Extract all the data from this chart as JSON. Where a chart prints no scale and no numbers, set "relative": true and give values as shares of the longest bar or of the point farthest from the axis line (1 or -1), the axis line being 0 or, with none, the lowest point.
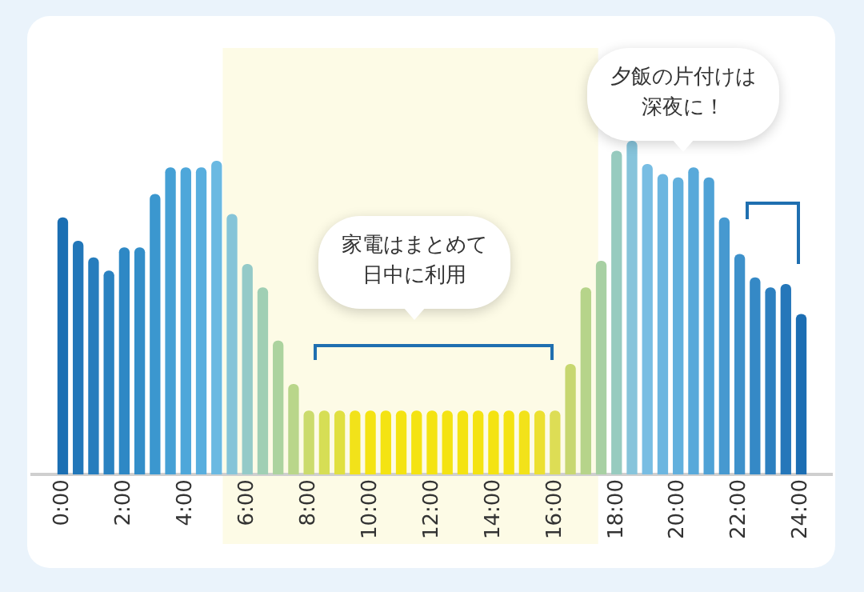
{
  "chart_data": {
    "type": "bar",
    "relative": true,
    "x": [
      0,
      0.5,
      1,
      1.5,
      2,
      2.5,
      3,
      3.5,
      4,
      4.5,
      5,
      5.5,
      6,
      6.5,
      7,
      7.5,
      8,
      8.5,
      9,
      9.5,
      10,
      10.5,
      11,
      11.5,
      12,
      12.5,
      13,
      13.5,
      14,
      14.5,
      15,
      15.5,
      16,
      16.5,
      17,
      17.5,
      18,
      18.5,
      19,
      19.5,
      20,
      20.5,
      21,
      21.5,
      22,
      22.5,
      23,
      23.5,
      24
    ],
    "values": [
      0.77,
      0.7,
      0.65,
      0.61,
      0.68,
      0.68,
      0.84,
      0.92,
      0.92,
      0.92,
      0.94,
      0.78,
      0.63,
      0.56,
      0.4,
      0.27,
      0.19,
      0.19,
      0.19,
      0.19,
      0.19,
      0.19,
      0.19,
      0.19,
      0.19,
      0.19,
      0.19,
      0.19,
      0.19,
      0.19,
      0.19,
      0.19,
      0.19,
      0.33,
      0.56,
      0.64,
      0.97,
      1,
      0.93,
      0.9,
      0.89,
      0.92,
      0.89,
      0.77,
      0.66,
      0.59,
      0.56,
      0.57,
      0.48
    ],
    "colors": [
      "#1b6fb3",
      "#2277b9",
      "#267dbd",
      "#2a82c1",
      "#2e88c5",
      "#338ec9",
      "#3b97cf",
      "#45a0d5",
      "#4ea7da",
      "#58aede",
      "#6ab9e2",
      "#85c4d8",
      "#94cac8",
      "#a0cfb4",
      "#acd39f",
      "#b9d68a",
      "#cbdb6c",
      "#d6de55",
      "#e0e040",
      "#f2e21a",
      "#f4e312",
      "#f4e312",
      "#f4e312",
      "#f4e312",
      "#f4e312",
      "#f4e312",
      "#f4e312",
      "#f4e312",
      "#f4e312",
      "#f4e312",
      "#f2e21a",
      "#ece030",
      "#dddd55",
      "#c7d770",
      "#b6d48a",
      "#a7d0a3",
      "#97cbbf",
      "#86c4db",
      "#78bde3",
      "#6cb6e0",
      "#62b0dd",
      "#58a9da",
      "#4fa2d6",
      "#4699d0",
      "#3e91cb",
      "#3589c6",
      "#2d80c0",
      "#2577ba",
      "#1c6eb3"
    ],
    "xlim": [
      -1,
      25
    ],
    "xticks": [
      {
        "value": 0,
        "label": "0:00"
      },
      {
        "value": 2,
        "label": "2:00"
      },
      {
        "value": 4,
        "label": "4:00"
      },
      {
        "value": 6,
        "label": "6:00"
      },
      {
        "value": 8,
        "label": "8:00"
      },
      {
        "value": 10,
        "label": "10:00"
      },
      {
        "value": 12,
        "label": "12:00"
      },
      {
        "value": 14,
        "label": "14:00"
      },
      {
        "value": 16,
        "label": "16:00"
      },
      {
        "value": 18,
        "label": "18:00"
      },
      {
        "value": 20,
        "label": "20:00"
      },
      {
        "value": 22,
        "label": "22:00"
      },
      {
        "value": 24,
        "label": "24:00"
      }
    ],
    "bands": [
      {
        "axis": "x",
        "from": 5.2,
        "to": 17.4,
        "color": "#fdfbe6"
      }
    ],
    "annotations": [
      "家電はまとめて日中に利用",
      "夕飯の片付けは深夜に！"
    ],
    "grid": false,
    "legend": false
  }
}
